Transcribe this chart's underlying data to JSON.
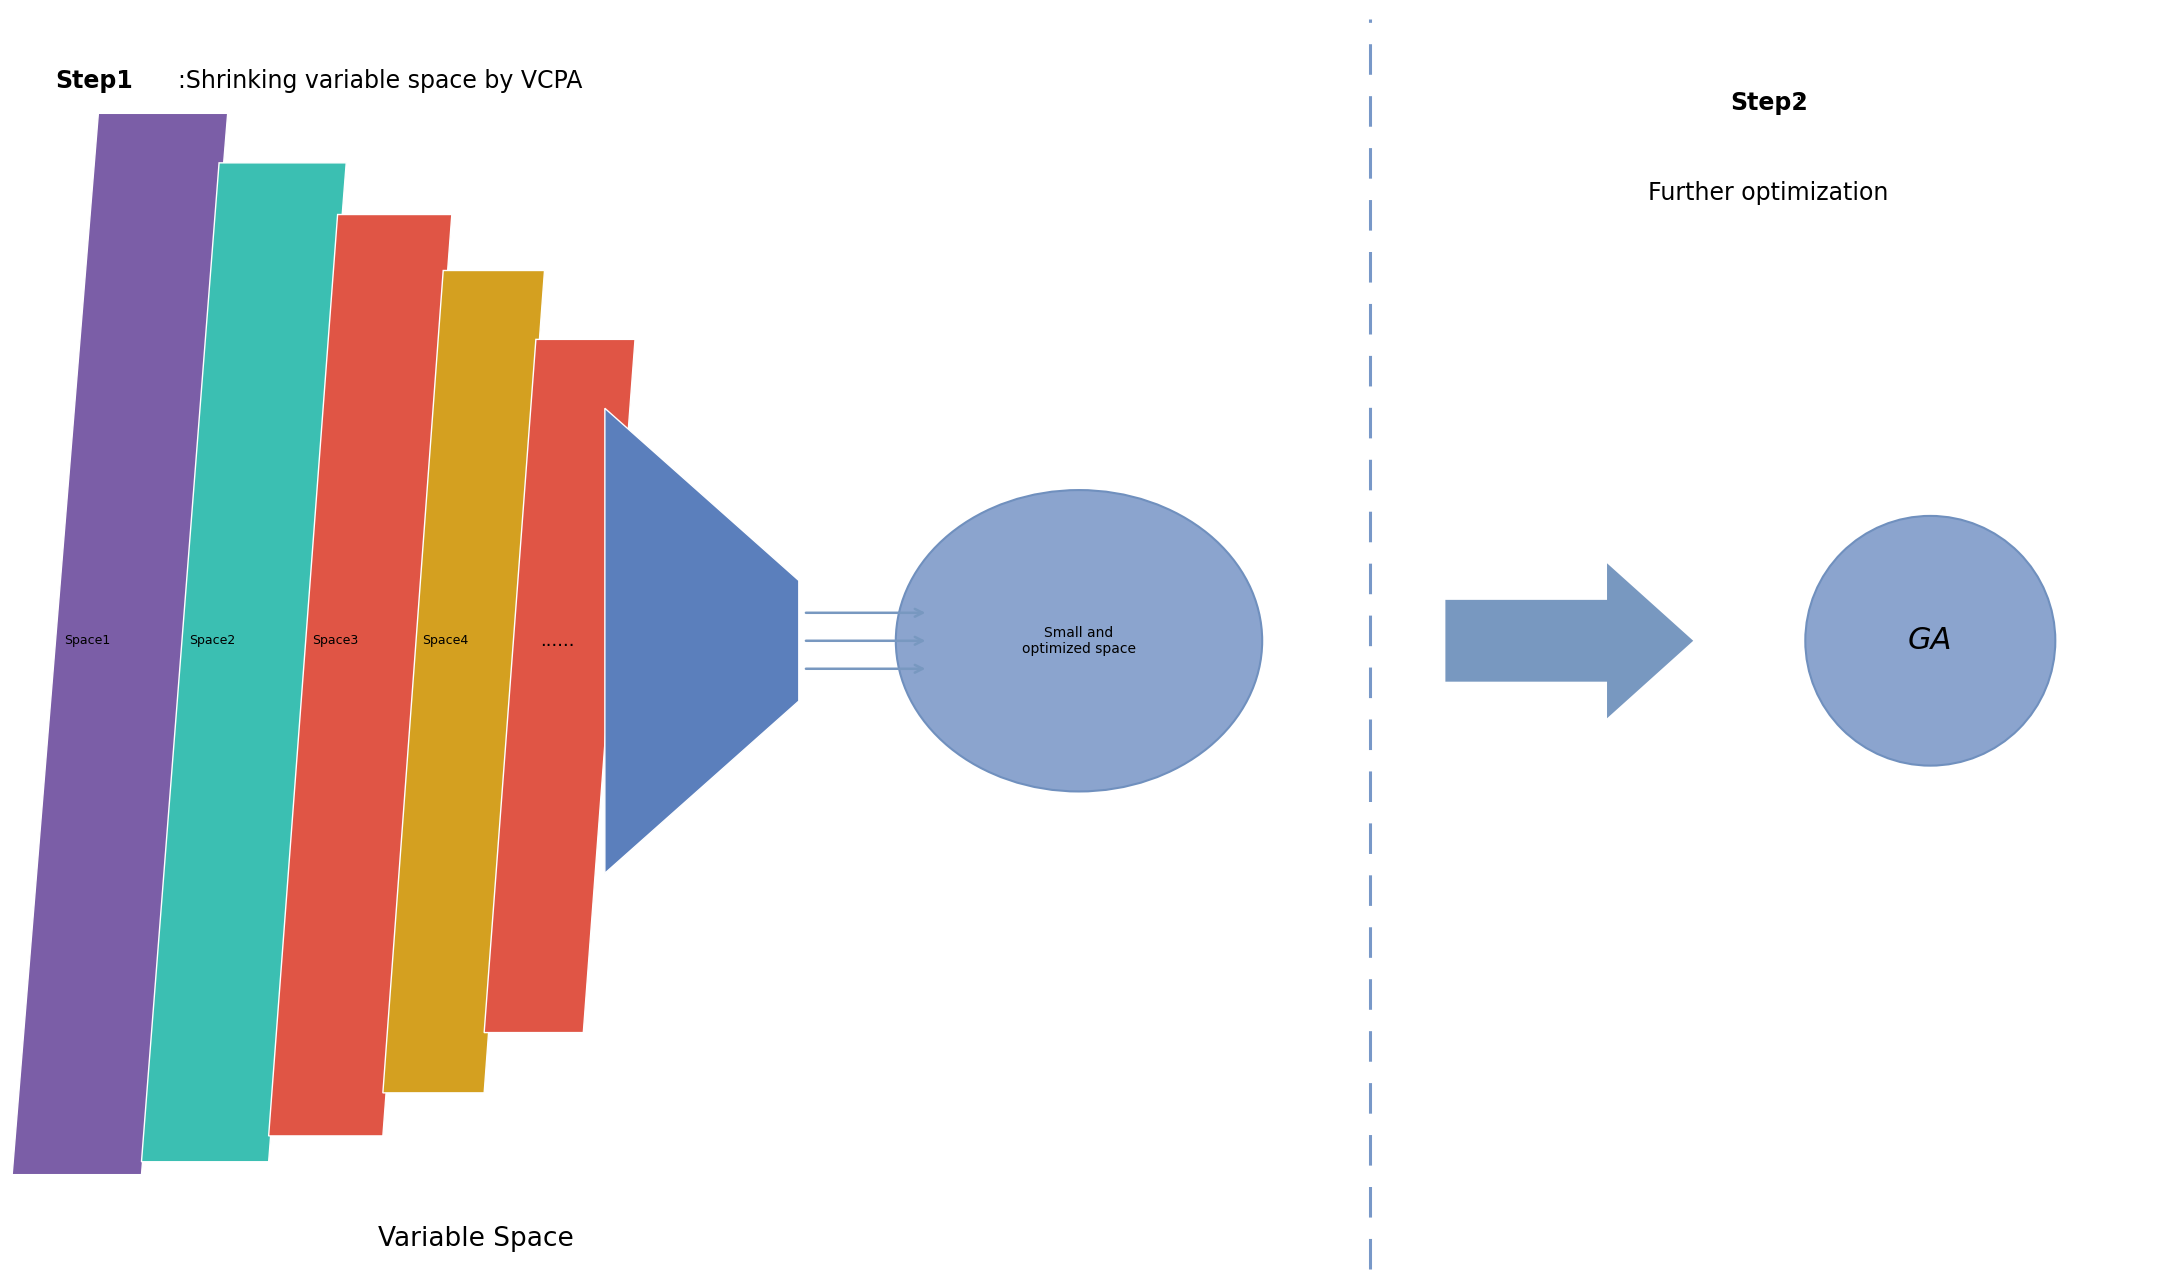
{
  "fig_width": 21.58,
  "fig_height": 12.88,
  "bg_color": "#ffffff",
  "step1_bold": "Step1",
  "step1_rest": ":Shrinking variable space by VCPA",
  "step2_bold": "Step2",
  "step2_colon": ":",
  "step2_rest": "Further optimization",
  "var_space_label": "Variable Space",
  "small_opt_label": "Small and\noptimized space",
  "ga_label": "GA",
  "dots_label": "......",
  "space_labels": [
    "Space1",
    "Space2",
    "Space3",
    "Space4",
    "......"
  ],
  "colors": [
    "#7B5EA7",
    "#3BBFB2",
    "#E05545",
    "#D4A020",
    "#E05545"
  ],
  "blue_trap_color": "#5B7FBC",
  "ellipse_fill": "#8BA4CE",
  "ellipse_edge": "#7090BE",
  "arrow_color": "#7898C0",
  "dash_color": "#7898C8",
  "ga_fill": "#8BA4CE",
  "ga_edge": "#7090BE"
}
